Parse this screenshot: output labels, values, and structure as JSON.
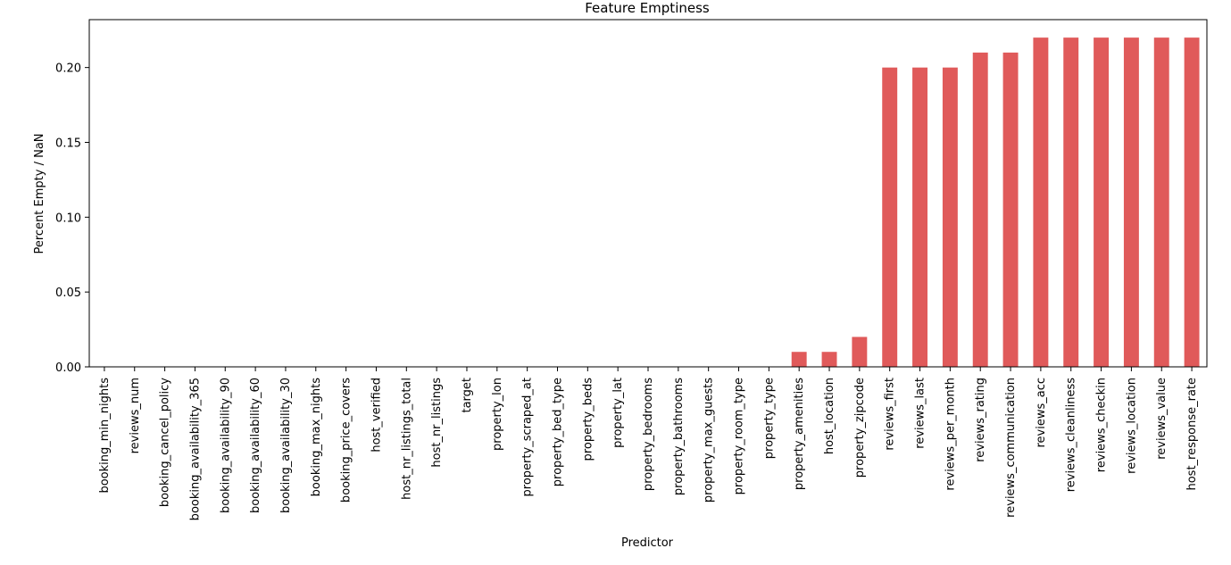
{
  "chart_data": {
    "type": "bar",
    "title": "Feature Emptiness",
    "xlabel": "Predictor",
    "ylabel": "Percent Empty / NaN",
    "ylim": [
      0,
      0.232
    ],
    "yticks": [
      0.0,
      0.05,
      0.1,
      0.15,
      0.2
    ],
    "ytick_labels": [
      "0.00",
      "0.05",
      "0.10",
      "0.15",
      "0.20"
    ],
    "grid": false,
    "legend": false,
    "bar_color": "#e05a5a",
    "categories": [
      "booking_min_nights",
      "reviews_num",
      "booking_cancel_policy",
      "booking_availability_365",
      "booking_availability_90",
      "booking_availability_60",
      "booking_availability_30",
      "booking_max_nights",
      "booking_price_covers",
      "host_verified",
      "host_nr_listings_total",
      "host_nr_listings",
      "target",
      "property_lon",
      "property_scraped_at",
      "property_bed_type",
      "property_beds",
      "property_lat",
      "property_bedrooms",
      "property_bathrooms",
      "property_max_guests",
      "property_room_type",
      "property_type",
      "property_amenities",
      "host_location",
      "property_zipcode",
      "reviews_first",
      "reviews_last",
      "reviews_per_month",
      "reviews_rating",
      "reviews_communication",
      "reviews_acc",
      "reviews_cleanliness",
      "reviews_checkin",
      "reviews_location",
      "reviews_value",
      "host_response_rate"
    ],
    "values": [
      0,
      0,
      0,
      0,
      0,
      0,
      0,
      0,
      0,
      0,
      0,
      0,
      0,
      0,
      0,
      0,
      0,
      0,
      0,
      0,
      0,
      0,
      0,
      0.01,
      0.01,
      0.02,
      0.2,
      0.2,
      0.2,
      0.21,
      0.21,
      0.22,
      0.22,
      0.22,
      0.22,
      0.22,
      0.22
    ]
  }
}
